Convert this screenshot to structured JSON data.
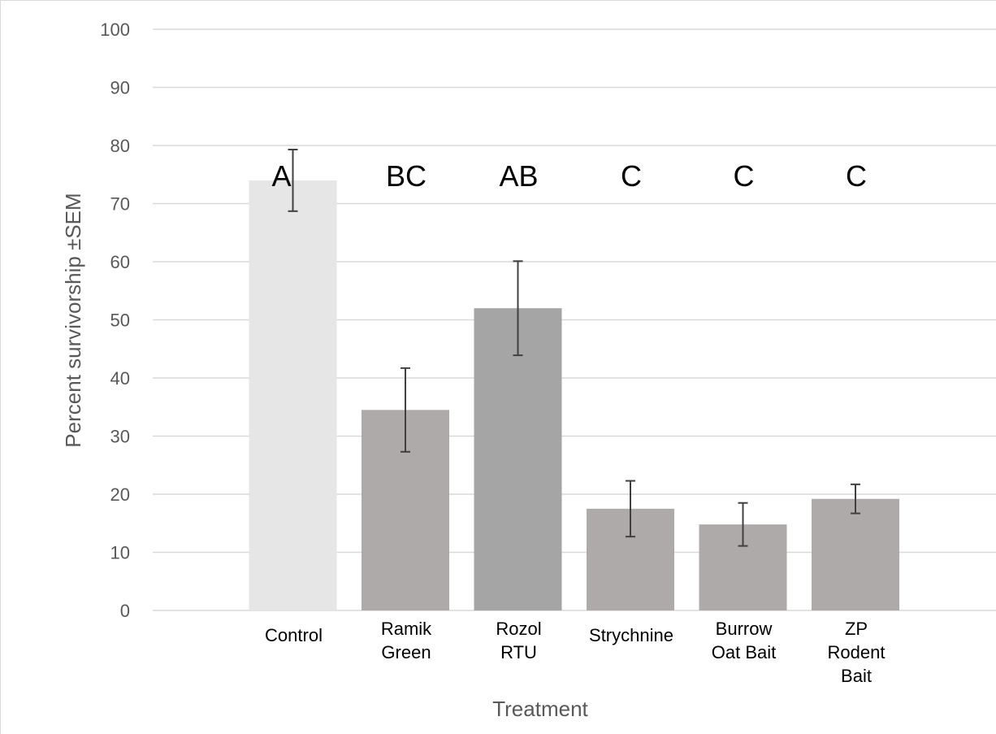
{
  "chart_data": {
    "type": "bar",
    "title": "",
    "xlabel": "Treatment",
    "ylabel": "Percent survivorship ±SEM",
    "ylim": [
      0,
      100
    ],
    "yticks": [
      0,
      10,
      20,
      30,
      40,
      50,
      60,
      70,
      80,
      90,
      100
    ],
    "grid": true,
    "categories": [
      [
        "Control"
      ],
      [
        "Ramik",
        "Green"
      ],
      [
        "Rozol",
        "RTU"
      ],
      [
        "Strychnine"
      ],
      [
        "Burrow",
        "Oat Bait"
      ],
      [
        "ZP",
        "Rodent",
        "Bait"
      ]
    ],
    "values": [
      74,
      34.5,
      52,
      17.5,
      14.8,
      19.2
    ],
    "errors": [
      5.3,
      7.2,
      8.1,
      4.8,
      3.7,
      2.5
    ],
    "significance_letters": [
      "A",
      "BC",
      "AB",
      "C",
      "C",
      "C"
    ],
    "colors": [
      "#e7e6e6",
      "#aeaaaa",
      "#a5a5a5",
      "#aeaaaa",
      "#aeaaaa",
      "#aeaaaa"
    ],
    "gridline_color": "#d9d9d9",
    "errorbar_color": "#404040"
  }
}
